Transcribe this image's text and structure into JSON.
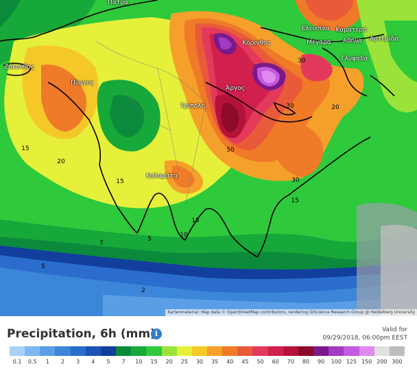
{
  "map": {
    "places": [
      {
        "name": "Πάτρα"
      },
      {
        "name": "Ελευσίνα"
      },
      {
        "name": "Καματερό"
      },
      {
        "name": "Κόρινθος"
      },
      {
        "name": "Μέγαρα"
      },
      {
        "name": "Αθήνα"
      },
      {
        "name": "Αρτεμίδα"
      },
      {
        "name": "Ζάκυνθος"
      },
      {
        "name": "Πύργος"
      },
      {
        "name": "Γλυφάδα"
      },
      {
        "name": "Άργος"
      },
      {
        "name": "Τρίπολη"
      },
      {
        "name": "Καλαμάτα"
      }
    ],
    "contour_labels": [
      {
        "value": "30"
      },
      {
        "value": "30"
      },
      {
        "value": "20"
      },
      {
        "value": "15"
      },
      {
        "value": "20"
      },
      {
        "value": "15"
      },
      {
        "value": "50"
      },
      {
        "value": "30"
      },
      {
        "value": "15"
      },
      {
        "value": "15"
      },
      {
        "value": "10"
      },
      {
        "value": "7"
      },
      {
        "value": "5"
      },
      {
        "value": "5"
      },
      {
        "value": "2"
      }
    ],
    "credit": "Kartenmaterial: Map data © OpenStreetMap contributors, rendering GIScience Research Group @ Heidelberg University"
  },
  "legend": {
    "title": "Precipitation, 6h (mm)",
    "info_icon": "info-icon",
    "valid_label": "Valid for",
    "valid_time": "09/29/2018, 06:00pm EEST",
    "scale": [
      {
        "label": "0.1",
        "color": "#a9d1f7"
      },
      {
        "label": "0.5",
        "color": "#7db7f0"
      },
      {
        "label": "1",
        "color": "#5a9fe6"
      },
      {
        "label": "2",
        "color": "#3c86da"
      },
      {
        "label": "3",
        "color": "#2a6dcc"
      },
      {
        "label": "4",
        "color": "#1c52b8"
      },
      {
        "label": "5",
        "color": "#123f9e"
      },
      {
        "label": "7",
        "color": "#0b8a3c"
      },
      {
        "label": "10",
        "color": "#17a83a"
      },
      {
        "label": "15",
        "color": "#2fc93c"
      },
      {
        "label": "20",
        "color": "#9be33a"
      },
      {
        "label": "25",
        "color": "#e6f03a"
      },
      {
        "label": "30",
        "color": "#f5c82a"
      },
      {
        "label": "35",
        "color": "#f5a02a"
      },
      {
        "label": "40",
        "color": "#ef7a28"
      },
      {
        "label": "45",
        "color": "#e95a3a"
      },
      {
        "label": "50",
        "color": "#e33a5c"
      },
      {
        "label": "60",
        "color": "#d11f4e"
      },
      {
        "label": "70",
        "color": "#b5123a"
      },
      {
        "label": "80",
        "color": "#8e0a2a"
      },
      {
        "label": "90",
        "color": "#7a1a8a"
      },
      {
        "label": "100",
        "color": "#a23ac4"
      },
      {
        "label": "125",
        "color": "#c45ae0"
      },
      {
        "label": "150",
        "color": "#e08af0"
      },
      {
        "label": "200",
        "color": "#e0e0e0"
      },
      {
        "label": "300",
        "color": "#bdbdbd"
      }
    ]
  }
}
